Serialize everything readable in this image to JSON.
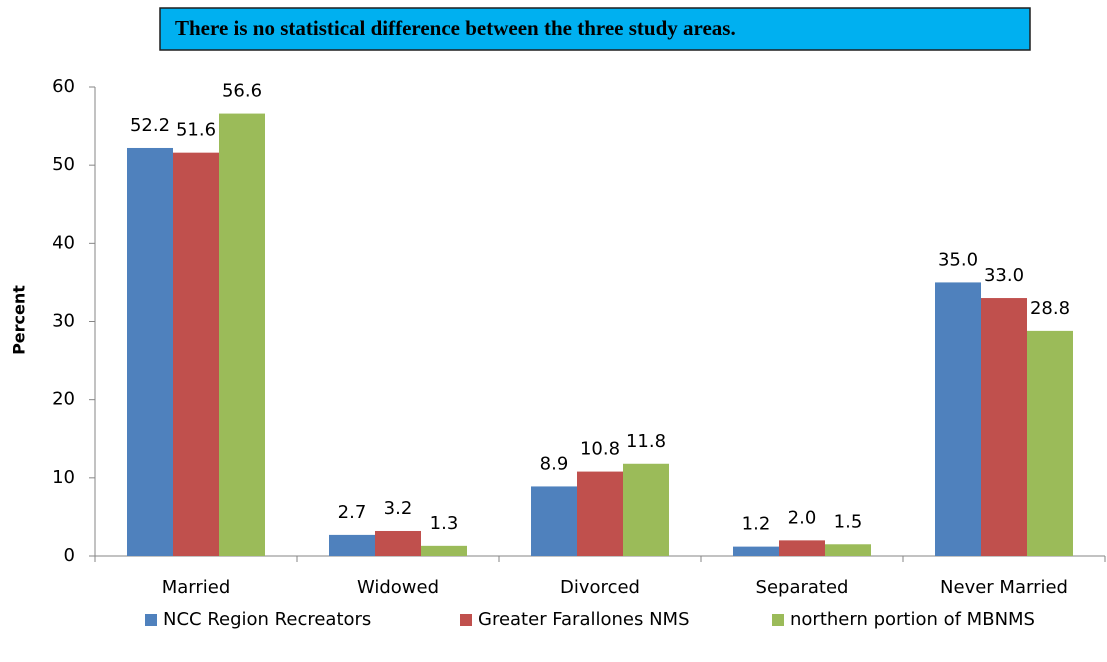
{
  "chart_data": {
    "type": "bar",
    "annotation": "There is no statistical difference between the three study areas.",
    "ylabel": "Percent",
    "categories": [
      "Married",
      "Widowed",
      "Divorced",
      "Separated",
      "Never Married"
    ],
    "series": [
      {
        "name": "NCC Region Recreators",
        "color": "#4f81bd",
        "values": [
          52.2,
          2.7,
          8.9,
          1.2,
          35
        ],
        "value_labels": [
          "52.2",
          "2.7",
          "8.9",
          "1.2",
          "35.0"
        ]
      },
      {
        "name": "Greater Farallones NMS",
        "color": "#c0504d",
        "values": [
          51.6,
          3.2,
          10.8,
          2,
          33
        ],
        "value_labels": [
          "51.6",
          "3.2",
          "10.8",
          "2.0",
          "33.0"
        ]
      },
      {
        "name": "northern portion of MBNMS",
        "color": "#9bbb59",
        "values": [
          56.6,
          1.3,
          11.8,
          1.5,
          28.8
        ],
        "value_labels": [
          "56.6",
          "1.3",
          "11.8",
          "1.5",
          "28.8"
        ]
      }
    ],
    "ylim": [
      0,
      60
    ],
    "yticks": [
      0,
      10,
      20,
      30,
      40,
      50,
      60
    ],
    "grid": false,
    "legend": "bottom"
  }
}
